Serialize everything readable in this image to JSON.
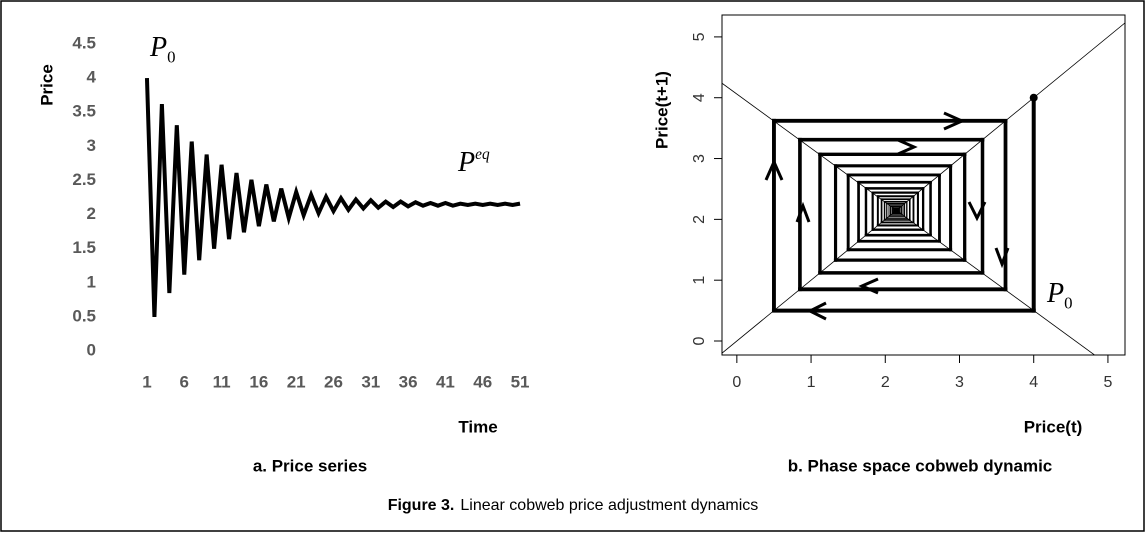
{
  "chart_data": [
    {
      "type": "line",
      "subtitle": "a.  Price series",
      "ylabel": "Price",
      "xlabel": "Time",
      "x": [
        1,
        2,
        3,
        4,
        5,
        6,
        7,
        8,
        9,
        10,
        11,
        12,
        13,
        14,
        15,
        16,
        17,
        18,
        19,
        20,
        21,
        22,
        23,
        24,
        25,
        26,
        27,
        28,
        29,
        30,
        31,
        32,
        33,
        34,
        35,
        36,
        37,
        38,
        39,
        40,
        41,
        42,
        43,
        44,
        45,
        46,
        47,
        48,
        49,
        50,
        51
      ],
      "series": [
        {
          "name": "Price",
          "color": "#000000",
          "values": [
            4.0,
            0.5,
            3.62,
            0.85,
            3.31,
            1.12,
            3.07,
            1.33,
            2.88,
            1.5,
            2.73,
            1.64,
            2.61,
            1.74,
            2.51,
            1.83,
            2.44,
            1.9,
            2.38,
            1.95,
            2.33,
            1.99,
            2.29,
            2.02,
            2.26,
            2.05,
            2.24,
            2.07,
            2.22,
            2.09,
            2.21,
            2.1,
            2.19,
            2.11,
            2.19,
            2.12,
            2.18,
            2.13,
            2.17,
            2.13,
            2.17,
            2.13,
            2.16,
            2.14,
            2.16,
            2.14,
            2.16,
            2.14,
            2.16,
            2.14,
            2.16
          ]
        }
      ],
      "xlim": [
        0,
        52
      ],
      "xticks": [
        1,
        6,
        11,
        16,
        21,
        26,
        31,
        36,
        41,
        46,
        51
      ],
      "ylim": [
        0,
        4.5
      ],
      "yticks": [
        0,
        0.5,
        1,
        1.5,
        2,
        2.5,
        3,
        3.5,
        4,
        4.5
      ],
      "annotations": [
        {
          "text": "P",
          "subscript": "0"
        },
        {
          "text": "P",
          "superscript": "eq"
        }
      ]
    },
    {
      "type": "cobweb",
      "subtitle": "b.  Phase space cobweb dynamic",
      "ylabel": "Price(t+1)",
      "xlabel": "Price(t)",
      "series": [
        {
          "name": "Price",
          "color": "#000000",
          "values": [
            4.0,
            0.5,
            3.62,
            0.85,
            3.31,
            1.12,
            3.07,
            1.33,
            2.88,
            1.5,
            2.73,
            1.64,
            2.61,
            1.74,
            2.51,
            1.83,
            2.44,
            1.9,
            2.38,
            1.95,
            2.33,
            1.99,
            2.29,
            2.02,
            2.26,
            2.05,
            2.24,
            2.07,
            2.22,
            2.09,
            2.21,
            2.1,
            2.19,
            2.11,
            2.19,
            2.12,
            2.18,
            2.13,
            2.17,
            2.13,
            2.17,
            2.13,
            2.16,
            2.14,
            2.16,
            2.14,
            2.16,
            2.14,
            2.16,
            2.14,
            2.16
          ]
        }
      ],
      "lines": [
        {
          "slope": 1,
          "intercept": 0
        },
        {
          "slope": -0.89,
          "intercept": 4.06
        }
      ],
      "xlim": [
        -0.2,
        5.23
      ],
      "xticks": [
        0,
        1,
        2,
        3,
        4,
        5
      ],
      "ylim": [
        -0.23,
        5.36
      ],
      "yticks": [
        0,
        1,
        2,
        3,
        4,
        5
      ],
      "annotations": [
        {
          "text": "P",
          "subscript": "0"
        }
      ]
    }
  ],
  "caption": {
    "label": "Figure 3.",
    "text": "Linear cobweb price adjustment dynamics"
  }
}
